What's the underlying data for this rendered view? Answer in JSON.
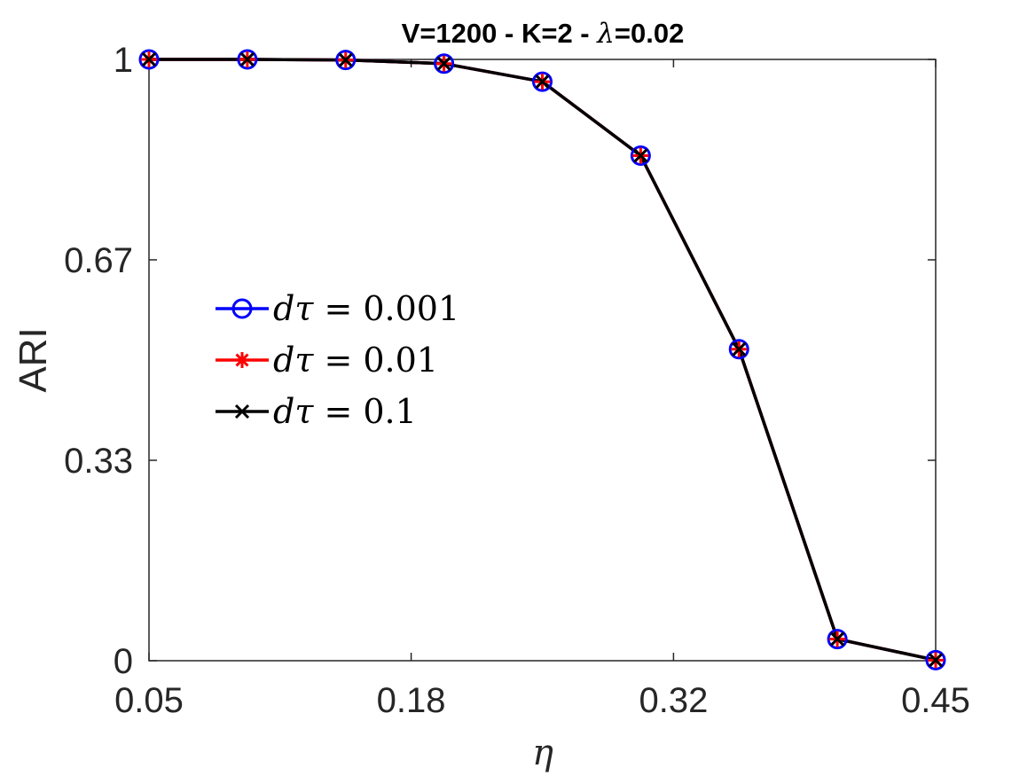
{
  "chart_data": {
    "type": "line",
    "title": "V=1200 - K=2 - λ=0.02",
    "title_parts": {
      "prefix": "V=1200 - K=2 - ",
      "symbol": "λ",
      "suffix": "=0.02"
    },
    "xlabel": "η",
    "ylabel": "ARI",
    "xlim": [
      0.05,
      0.45
    ],
    "ylim": [
      0,
      1
    ],
    "xticks": [
      0.05,
      0.1833,
      0.3167,
      0.45
    ],
    "xtick_labels": [
      "0.05",
      "0.18",
      "0.32",
      "0.45"
    ],
    "yticks": [
      0,
      0.3333,
      0.6667,
      1
    ],
    "ytick_labels": [
      "0",
      "0.33",
      "0.67",
      "1"
    ],
    "grid": false,
    "legend_position": "center-left",
    "x": [
      0.05,
      0.1,
      0.15,
      0.2,
      0.25,
      0.3,
      0.35,
      0.4,
      0.45
    ],
    "series": [
      {
        "name": "dτ = 0.001",
        "label_lhs": "dτ",
        "label_value": "0.001",
        "color": "#0000ff",
        "marker": "circle",
        "values": [
          1.0,
          1.0,
          0.999,
          0.993,
          0.963,
          0.84,
          0.518,
          0.036,
          0.001
        ]
      },
      {
        "name": "dτ = 0.01",
        "label_lhs": "dτ",
        "label_value": "0.01",
        "color": "#ff0000",
        "marker": "asterisk",
        "values": [
          1.0,
          1.0,
          0.999,
          0.993,
          0.963,
          0.84,
          0.518,
          0.036,
          0.001
        ]
      },
      {
        "name": "dτ = 0.1",
        "label_lhs": "dτ",
        "label_value": "0.1",
        "color": "#000000",
        "marker": "x",
        "values": [
          1.0,
          1.0,
          0.999,
          0.993,
          0.963,
          0.84,
          0.518,
          0.036,
          0.001
        ]
      }
    ]
  }
}
